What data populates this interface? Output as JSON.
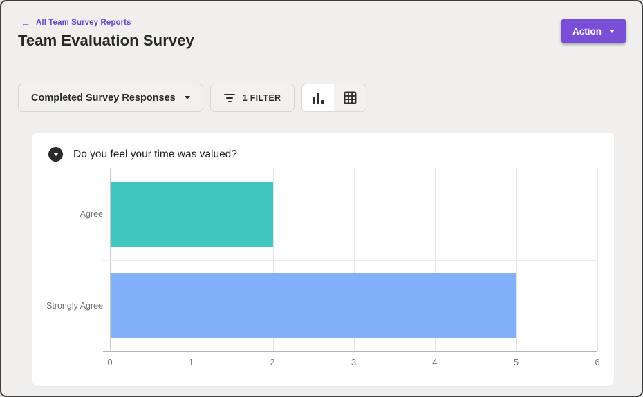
{
  "header": {
    "back_link": "All Team Survey Reports",
    "title": "Team Evaluation Survey",
    "action_button": "Action"
  },
  "toolbar": {
    "response_dropdown": "Completed Survey Responses",
    "filter_button": "1 FILTER"
  },
  "icons": {
    "back": "arrow-left",
    "action_caret": "chevron-down",
    "dropdown_caret": "chevron-down",
    "filter": "filter-lines",
    "chart_view": "bar-chart",
    "table_view": "table-grid",
    "collapse": "chevron-down-circle"
  },
  "card": {
    "question": "Do you feel your time was valued?"
  },
  "chart_data": {
    "type": "bar",
    "orientation": "horizontal",
    "title": "Do you feel your time was valued?",
    "categories": [
      "Agree",
      "Strongly Agree"
    ],
    "values": [
      2,
      5
    ],
    "bar_colors": [
      "#41c6c0",
      "#83b1f9"
    ],
    "xlabel": "",
    "ylabel": "",
    "xlim": [
      0,
      6
    ],
    "x_ticks": [
      0,
      1,
      2,
      3,
      4,
      5,
      6
    ],
    "grid": true,
    "legend": false
  },
  "colors": {
    "accent_purple": "#7a4fd8",
    "link_purple": "#6847c8",
    "bar_teal": "#41c6c0",
    "bar_blue": "#83b1f9",
    "page_bg": "#f0efed",
    "card_bg": "#ffffff"
  }
}
